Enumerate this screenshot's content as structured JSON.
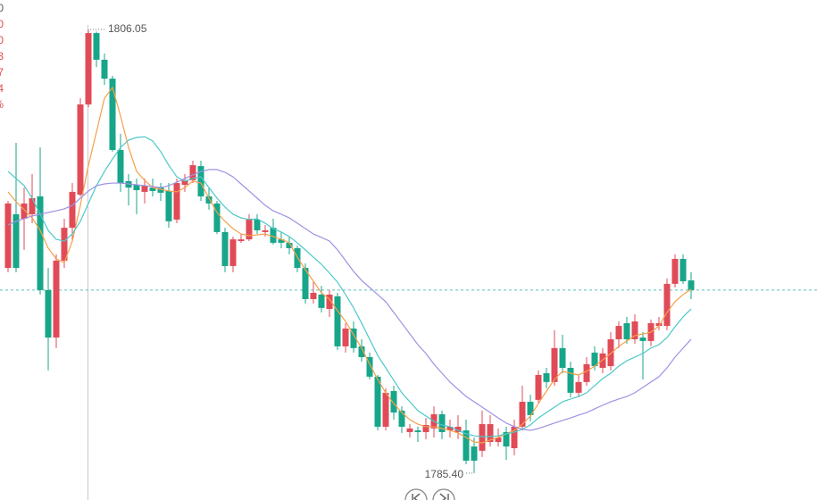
{
  "chart_data": {
    "type": "candlestick",
    "up_color": "#e04b57",
    "down_color": "#17a689",
    "ylim": [
      1784.15,
      1807.42
    ],
    "high_label": "1806.05",
    "low_label": "1785.40",
    "side_labels": [
      {
        "text": "0",
        "color": "#555555"
      },
      {
        "text": "0",
        "color": "#e04b57"
      },
      {
        "text": "0",
        "color": "#e04b57"
      },
      {
        "text": "3",
        "color": "#e04b57"
      },
      {
        "text": "7",
        "color": "#e04b57"
      },
      {
        "text": "4",
        "color": "#e04b57"
      },
      {
        "text": "%",
        "color": "#e04b57"
      }
    ],
    "open": [
      1794.95,
      1797.45,
      1797.24,
      1797.45,
      1798.28,
      1793.92,
      1791.71,
      1795.29,
      1796.82,
      1798.36,
      1802.56,
      1805.88,
      1804.64,
      1803.76,
      1800.44,
      1798.99,
      1798.82,
      1798.49,
      1798.69,
      1798.69,
      1798.53,
      1797.2,
      1798.82,
      1799.03,
      1799.69,
      1798.28,
      1797.95,
      1796.62,
      1795.04,
      1796.2,
      1796.28,
      1797.2,
      1796.62,
      1796.82,
      1796.28,
      1796.12,
      1795.87,
      1794.95,
      1793.5,
      1793.71,
      1793.04,
      1793.63,
      1791.3,
      1792.13,
      1791.3,
      1790.8,
      1789.89,
      1787.56,
      1789.22,
      1788.31,
      1787.31,
      1787.39,
      1787.31,
      1787.48,
      1788.14,
      1787.39,
      1787.31,
      1787.39,
      1786.64,
      1786.44,
      1786.85,
      1786.85,
      1787.31,
      1786.56,
      1787.56,
      1788.72,
      1788.81,
      1790.05,
      1789.64,
      1791.22,
      1790.3,
      1789.14,
      1789.64,
      1791.01,
      1790.3,
      1790.38,
      1791.63,
      1792.38,
      1791.63,
      1791.71,
      1791.55,
      1792.25,
      1792.25,
      1794.21,
      1795.37,
      1794.37
    ],
    "high": [
      1798.07,
      1800.77,
      1798.69,
      1799.32,
      1800.56,
      1794.95,
      1795.58,
      1797.24,
      1798.9,
      1802.85,
      1806.05,
      1805.95,
      1804.93,
      1803.89,
      1801.19,
      1799.32,
      1799.11,
      1799.11,
      1799.11,
      1798.9,
      1798.9,
      1799.11,
      1799.32,
      1799.94,
      1799.94,
      1798.69,
      1798.07,
      1796.82,
      1796.41,
      1796.53,
      1797.45,
      1797.45,
      1796.95,
      1797.24,
      1796.62,
      1796.41,
      1795.99,
      1795.16,
      1794.33,
      1794.12,
      1793.92,
      1793.79,
      1792.38,
      1792.46,
      1791.63,
      1791.01,
      1789.97,
      1789.35,
      1789.47,
      1788.51,
      1787.68,
      1787.56,
      1787.97,
      1788.51,
      1788.31,
      1787.89,
      1788.1,
      1787.89,
      1787.06,
      1788.31,
      1788.1,
      1787.48,
      1787.56,
      1787.89,
      1789.47,
      1789.05,
      1790.18,
      1790.3,
      1792.05,
      1791.84,
      1790.59,
      1789.97,
      1790.8,
      1791.3,
      1791.22,
      1791.96,
      1792.46,
      1792.67,
      1792.79,
      1791.96,
      1792.55,
      1792.67,
      1794.46,
      1795.58,
      1795.58,
      1794.75
    ],
    "low": [
      1794.75,
      1794.75,
      1795.79,
      1797.03,
      1793.71,
      1790.18,
      1791.22,
      1794.95,
      1796.2,
      1798.28,
      1802.43,
      1804.3,
      1803.47,
      1800.36,
      1798.49,
      1797.86,
      1797.45,
      1797.95,
      1798.28,
      1798.07,
      1796.82,
      1797.03,
      1798.49,
      1798.9,
      1798.07,
      1797.66,
      1796.53,
      1794.75,
      1794.75,
      1796.12,
      1796.2,
      1796.53,
      1796.41,
      1796.04,
      1795.87,
      1795.58,
      1794.75,
      1793.29,
      1793.29,
      1792.88,
      1792.67,
      1791.13,
      1791.01,
      1791.01,
      1790.59,
      1789.76,
      1787.39,
      1787.39,
      1787.89,
      1787.27,
      1787.06,
      1786.85,
      1786.98,
      1787.06,
      1786.98,
      1787.06,
      1786.98,
      1785.81,
      1785.4,
      1786.15,
      1786.64,
      1786.64,
      1786.02,
      1786.23,
      1787.39,
      1787.81,
      1788.64,
      1789.35,
      1789.47,
      1790.05,
      1788.93,
      1788.93,
      1789.47,
      1790.18,
      1790.05,
      1790.18,
      1791.22,
      1791.42,
      1791.42,
      1789.76,
      1791.3,
      1792.05,
      1792.05,
      1794.04,
      1794.21,
      1793.5
    ],
    "close": [
      1797.95,
      1794.95,
      1797.95,
      1798.2,
      1793.92,
      1791.71,
      1795.29,
      1796.82,
      1798.49,
      1802.56,
      1805.88,
      1804.64,
      1803.76,
      1800.44,
      1798.9,
      1798.69,
      1798.57,
      1798.78,
      1798.53,
      1798.45,
      1797.12,
      1798.9,
      1799.03,
      1799.73,
      1798.28,
      1797.95,
      1796.62,
      1795.04,
      1796.28,
      1796.28,
      1797.24,
      1796.7,
      1796.7,
      1796.12,
      1796.12,
      1795.87,
      1794.95,
      1793.5,
      1793.79,
      1793.09,
      1793.71,
      1791.3,
      1792.13,
      1791.22,
      1790.8,
      1789.89,
      1787.56,
      1789.14,
      1788.22,
      1787.56,
      1787.48,
      1787.31,
      1787.64,
      1788.14,
      1787.31,
      1787.56,
      1787.56,
      1785.98,
      1785.98,
      1787.68,
      1787.68,
      1787.06,
      1786.64,
      1787.56,
      1788.72,
      1788.1,
      1789.97,
      1789.64,
      1791.22,
      1790.3,
      1789.14,
      1789.64,
      1790.47,
      1790.38,
      1790.97,
      1791.63,
      1792.25,
      1791.63,
      1792.46,
      1791.55,
      1792.38,
      1792.38,
      1794.21,
      1795.37,
      1794.33,
      1793.92
    ],
    "series": [
      {
        "color": "#f5a04a",
        "values": [
          1798.49,
          1798.03,
          1797.66,
          1797.28,
          1796.7,
          1795.87,
          1795.37,
          1795.2,
          1796.2,
          1797.86,
          1799.73,
          1801.27,
          1802.85,
          1803.35,
          1802.02,
          1800.56,
          1799.44,
          1799.03,
          1798.69,
          1798.61,
          1798.53,
          1798.49,
          1798.69,
          1798.99,
          1798.9,
          1798.2,
          1797.53,
          1797.12,
          1796.78,
          1796.53,
          1796.45,
          1796.49,
          1796.53,
          1796.41,
          1796.28,
          1796.12,
          1795.45,
          1794.87,
          1794.33,
          1793.79,
          1793.5,
          1792.96,
          1792.46,
          1791.84,
          1791.22,
          1790.47,
          1789.76,
          1789.14,
          1788.64,
          1788.22,
          1787.89,
          1787.68,
          1787.56,
          1787.56,
          1787.48,
          1787.39,
          1787.27,
          1787.06,
          1786.85,
          1786.81,
          1786.94,
          1787.06,
          1787.23,
          1787.39,
          1787.68,
          1788.06,
          1788.64,
          1789.22,
          1789.76,
          1790.14,
          1790.05,
          1789.97,
          1790.14,
          1790.38,
          1790.67,
          1790.97,
          1791.3,
          1791.55,
          1791.8,
          1791.88,
          1791.96,
          1792.25,
          1792.88,
          1793.38,
          1793.71,
          1793.96
        ]
      },
      {
        "color": "#4cc8c8",
        "values": [
          1799.44,
          1799.11,
          1798.78,
          1798.2,
          1797.45,
          1796.7,
          1796.28,
          1796.2,
          1796.53,
          1797.12,
          1797.95,
          1798.78,
          1799.44,
          1800.02,
          1800.56,
          1800.9,
          1801.02,
          1801.06,
          1800.86,
          1800.36,
          1799.73,
          1799.19,
          1798.99,
          1799.11,
          1799.19,
          1798.69,
          1798.2,
          1797.78,
          1797.45,
          1797.28,
          1797.2,
          1797.24,
          1797.03,
          1796.78,
          1796.62,
          1796.41,
          1796.12,
          1795.79,
          1795.45,
          1795.12,
          1794.71,
          1794.29,
          1793.71,
          1793.09,
          1792.38,
          1791.63,
          1790.88,
          1790.3,
          1789.72,
          1789.14,
          1788.72,
          1788.31,
          1788.06,
          1787.81,
          1787.64,
          1787.56,
          1787.39,
          1787.23,
          1787.14,
          1787.1,
          1787.1,
          1787.14,
          1787.23,
          1787.31,
          1787.44,
          1787.64,
          1787.97,
          1788.22,
          1788.47,
          1788.72,
          1788.85,
          1788.97,
          1789.14,
          1789.47,
          1789.8,
          1790.05,
          1790.38,
          1790.63,
          1790.8,
          1790.97,
          1791.22,
          1791.38,
          1791.71,
          1792.21,
          1792.67,
          1793.04
        ]
      },
      {
        "color": "#9d92e3",
        "values": [
          1796.95,
          1797.12,
          1797.24,
          1797.37,
          1797.45,
          1797.53,
          1797.61,
          1797.7,
          1797.86,
          1798.2,
          1798.53,
          1798.78,
          1798.86,
          1798.9,
          1798.9,
          1798.86,
          1798.82,
          1798.78,
          1798.74,
          1798.69,
          1798.78,
          1798.94,
          1799.11,
          1799.28,
          1799.44,
          1799.53,
          1799.53,
          1799.4,
          1799.19,
          1798.86,
          1798.53,
          1798.2,
          1797.86,
          1797.61,
          1797.45,
          1797.28,
          1797.03,
          1796.78,
          1796.53,
          1796.37,
          1796.2,
          1795.79,
          1795.29,
          1794.79,
          1794.37,
          1794.04,
          1793.71,
          1793.38,
          1792.88,
          1792.38,
          1791.88,
          1791.38,
          1790.97,
          1790.47,
          1790.05,
          1789.64,
          1789.3,
          1788.97,
          1788.72,
          1788.47,
          1788.22,
          1787.97,
          1787.73,
          1787.56,
          1787.44,
          1787.39,
          1787.48,
          1787.6,
          1787.73,
          1787.85,
          1787.97,
          1788.1,
          1788.22,
          1788.39,
          1788.56,
          1788.72,
          1788.85,
          1788.97,
          1789.14,
          1789.39,
          1789.64,
          1789.89,
          1790.3,
          1790.8,
          1791.22,
          1791.63
        ]
      }
    ]
  }
}
